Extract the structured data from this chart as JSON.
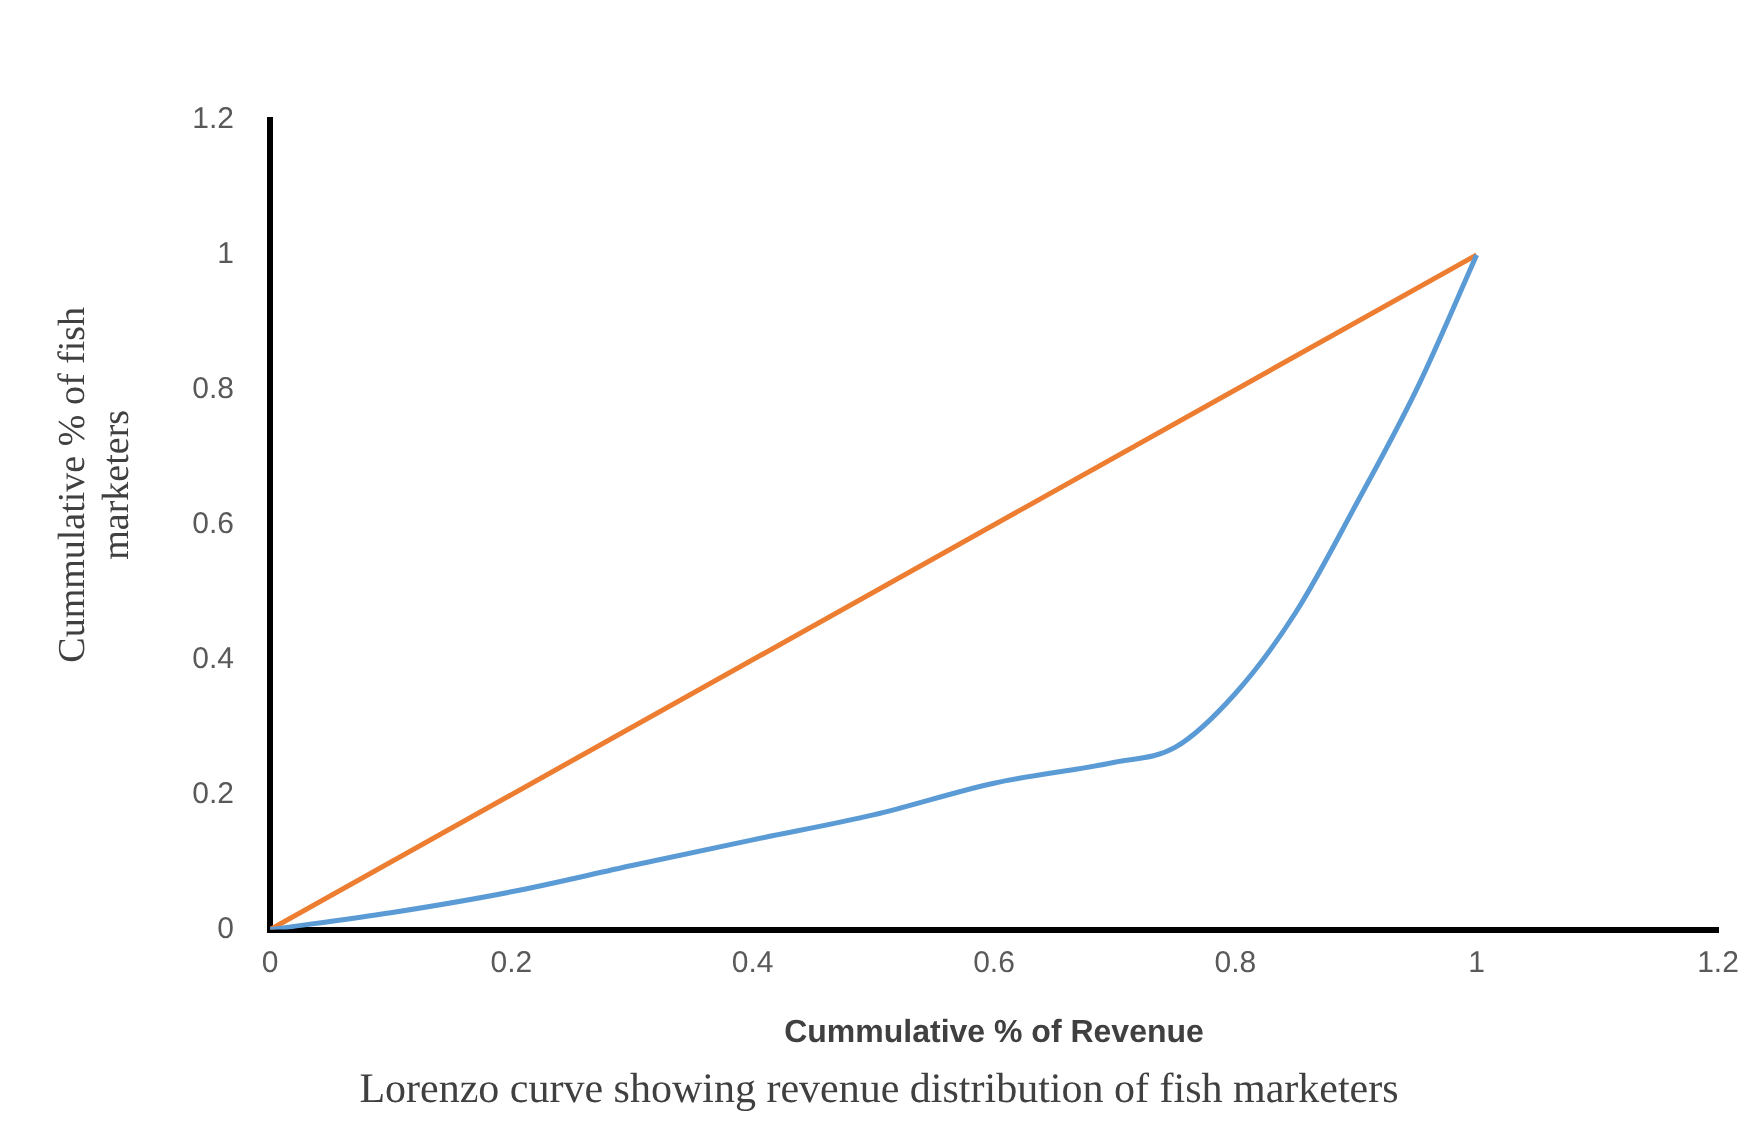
{
  "chart_data": {
    "type": "line",
    "title": "Lorenzo curve showing revenue distribution of fish marketers",
    "xlabel": "Cummulative % of Revenue",
    "ylabel": "Cummulative % of fish marketers",
    "xlim": [
      0,
      1.2
    ],
    "xticks": [
      0,
      0.2,
      0.4,
      0.6,
      0.8,
      1,
      1.2
    ],
    "ylim": [
      0,
      1.2
    ],
    "yticks": [
      0,
      0.2,
      0.4,
      0.6,
      0.8,
      1,
      1.2
    ],
    "grid": false,
    "legend": false,
    "marker": "none",
    "line_style": "solid",
    "series": [
      {
        "color": "#5b9bd5",
        "x": [
          0,
          0.1,
          0.2,
          0.3,
          0.4,
          0.5,
          0.6,
          0.7,
          0.75,
          0.8,
          0.85,
          0.9,
          0.95,
          1
        ],
        "values": [
          0,
          0.025,
          0.056,
          0.095,
          0.133,
          0.17,
          0.217,
          0.248,
          0.27,
          0.35,
          0.47,
          0.63,
          0.8,
          1
        ]
      },
      {
        "color": "#ed7d31",
        "x": [
          0,
          1
        ],
        "values": [
          0,
          1
        ]
      }
    ]
  }
}
